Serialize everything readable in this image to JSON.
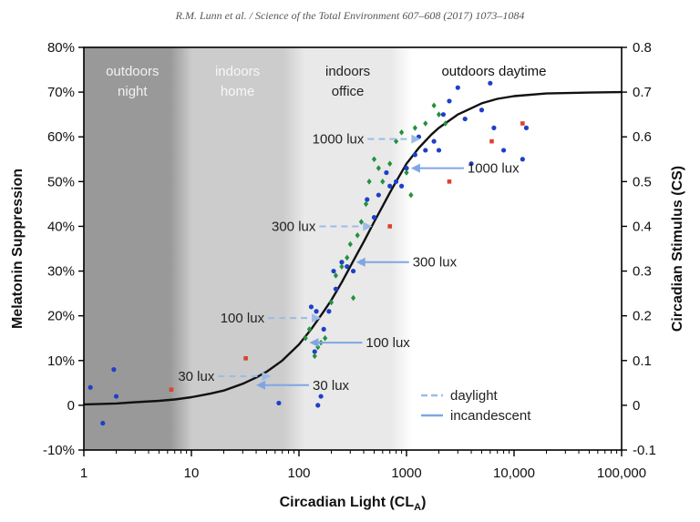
{
  "header": "R.M. Lunn et al. / Science of the Total Environment 607–608 (2017) 1073–1084",
  "chart_data": {
    "type": "scatter",
    "xlabel": "Circadian Light (CL",
    "xlabel_sub": "A",
    "xlabel_close": ")",
    "ylabel_left": "Melatonin Suppression",
    "ylabel_right": "Circadian Stimulus (CS)",
    "x_scale": "log",
    "xlim": [
      1,
      100000
    ],
    "ylim": [
      -10,
      80
    ],
    "x_ticks": [
      1,
      10,
      100,
      1000,
      10000,
      100000
    ],
    "x_tick_labels": [
      "1",
      "10",
      "100",
      "1000",
      "10,000",
      "100,000"
    ],
    "y_ticks_left": [
      -10,
      0,
      10,
      20,
      30,
      40,
      50,
      60,
      70,
      80
    ],
    "y_tick_labels_left": [
      "-10%",
      "0",
      "10%",
      "20%",
      "30%",
      "40%",
      "50%",
      "60%",
      "70%",
      "80%"
    ],
    "y_tick_labels_right": [
      "-0.1",
      "0",
      "0.1",
      "0.2",
      "0.3",
      "0.4",
      "0.5",
      "0.6",
      "0.7",
      "0.8"
    ],
    "grid": false,
    "zones": [
      {
        "label_lines": [
          "outdoors",
          "night"
        ],
        "x_from": 1,
        "x_to": 8,
        "color": "#999999",
        "text_color": "#f2f2f2"
      },
      {
        "label_lines": [
          "indoors",
          "home"
        ],
        "x_from": 8,
        "x_to": 90,
        "color": "#cccccc",
        "text_color": "#f7f7f7"
      },
      {
        "label_lines": [
          "indoors",
          "office"
        ],
        "x_from": 90,
        "x_to": 900,
        "color": "#e9e9e9",
        "text_color": "#222222"
      },
      {
        "label_lines": [
          "outdoors daytime"
        ],
        "x_from": 900,
        "x_to": 100000,
        "color": "#ffffff",
        "text_color": "#111111"
      }
    ],
    "curve": {
      "name": "model",
      "color": "#111111",
      "x": [
        1,
        2,
        3,
        5,
        7,
        10,
        15,
        20,
        30,
        40,
        50,
        70,
        100,
        130,
        170,
        200,
        250,
        300,
        350,
        400,
        500,
        600,
        700,
        800,
        1000,
        1300,
        1700,
        2000,
        3000,
        5000,
        7000,
        10000,
        20000,
        50000,
        100000
      ],
      "y": [
        0.2,
        0.4,
        0.7,
        1.0,
        1.3,
        1.8,
        2.6,
        3.3,
        4.8,
        6.2,
        7.5,
        10.0,
        13.6,
        17.0,
        21.0,
        23.5,
        27.5,
        31.0,
        34.0,
        36.5,
        41.0,
        44.5,
        47.5,
        50.0,
        54.0,
        57.5,
        60.5,
        62.0,
        65.0,
        67.5,
        68.5,
        69.1,
        69.7,
        69.9,
        70.0
      ]
    },
    "points": [
      {
        "name": "blue",
        "color": "#1f3fc9",
        "shape": "circle",
        "x": [
          1.15,
          1.5,
          1.9,
          2.0,
          65,
          130,
          140,
          145,
          150,
          160,
          170,
          190,
          210,
          220,
          250,
          280,
          320,
          380,
          430,
          500,
          550,
          650,
          700,
          800,
          900,
          1000,
          1200,
          1300,
          1500,
          1800,
          2000,
          2200,
          2500,
          3000,
          3500,
          4000,
          5000,
          6000,
          6500,
          8000,
          12000,
          13000
        ],
        "y": [
          4,
          -4,
          8,
          2,
          0.5,
          22,
          12,
          21,
          0,
          2,
          17,
          21,
          30,
          26,
          32,
          31,
          30,
          32,
          46,
          42,
          47,
          52,
          49,
          50,
          49,
          53,
          56,
          60,
          57,
          59,
          57,
          65,
          68,
          71,
          64,
          54,
          66,
          72,
          62,
          57,
          55,
          62
        ]
      },
      {
        "name": "green",
        "color": "#23913c",
        "shape": "diamond",
        "x": [
          115,
          125,
          140,
          150,
          160,
          175,
          200,
          220,
          250,
          280,
          300,
          320,
          350,
          380,
          420,
          450,
          500,
          550,
          600,
          700,
          800,
          900,
          1000,
          1100,
          1200,
          1500,
          1800,
          2000,
          2300
        ],
        "y": [
          15,
          17,
          11,
          13,
          14,
          15,
          23,
          29,
          31,
          33,
          36,
          24,
          38,
          41,
          45,
          50,
          55,
          53,
          50,
          54,
          59,
          61,
          52,
          47,
          62,
          63,
          67,
          65,
          63
        ]
      },
      {
        "name": "red",
        "color": "#e0402e",
        "shape": "square",
        "x": [
          6.5,
          32,
          700,
          2500,
          6200,
          12000
        ],
        "y": [
          3.5,
          10.5,
          40,
          50,
          59,
          63
        ]
      }
    ],
    "annotations": [
      {
        "text": "1000 lux",
        "kind": "daylight",
        "side": "left",
        "x_tip": 1350,
        "y": 59.5
      },
      {
        "text": "1000 lux",
        "kind": "incandescent",
        "side": "right",
        "x_tip": 1100,
        "y": 53
      },
      {
        "text": "300 lux",
        "kind": "daylight",
        "side": "left",
        "x_tip": 480,
        "y": 40
      },
      {
        "text": "300 lux",
        "kind": "incandescent",
        "side": "right",
        "x_tip": 340,
        "y": 32
      },
      {
        "text": "100 lux",
        "kind": "daylight",
        "side": "left",
        "x_tip": 160,
        "y": 19.5
      },
      {
        "text": "100 lux",
        "kind": "incandescent",
        "side": "right",
        "x_tip": 125,
        "y": 14
      },
      {
        "text": "30 lux",
        "kind": "daylight",
        "side": "left",
        "x_tip": 55,
        "y": 6.5
      },
      {
        "text": "30 lux",
        "kind": "incandescent",
        "side": "right",
        "x_tip": 40,
        "y": 4.5
      }
    ],
    "legend": {
      "placement": "bottom-right",
      "entries": [
        {
          "label": "daylight",
          "style": "dashed",
          "color": "#9dbbe8"
        },
        {
          "label": "incandescent",
          "style": "solid",
          "color": "#7fa6e3"
        }
      ]
    }
  }
}
